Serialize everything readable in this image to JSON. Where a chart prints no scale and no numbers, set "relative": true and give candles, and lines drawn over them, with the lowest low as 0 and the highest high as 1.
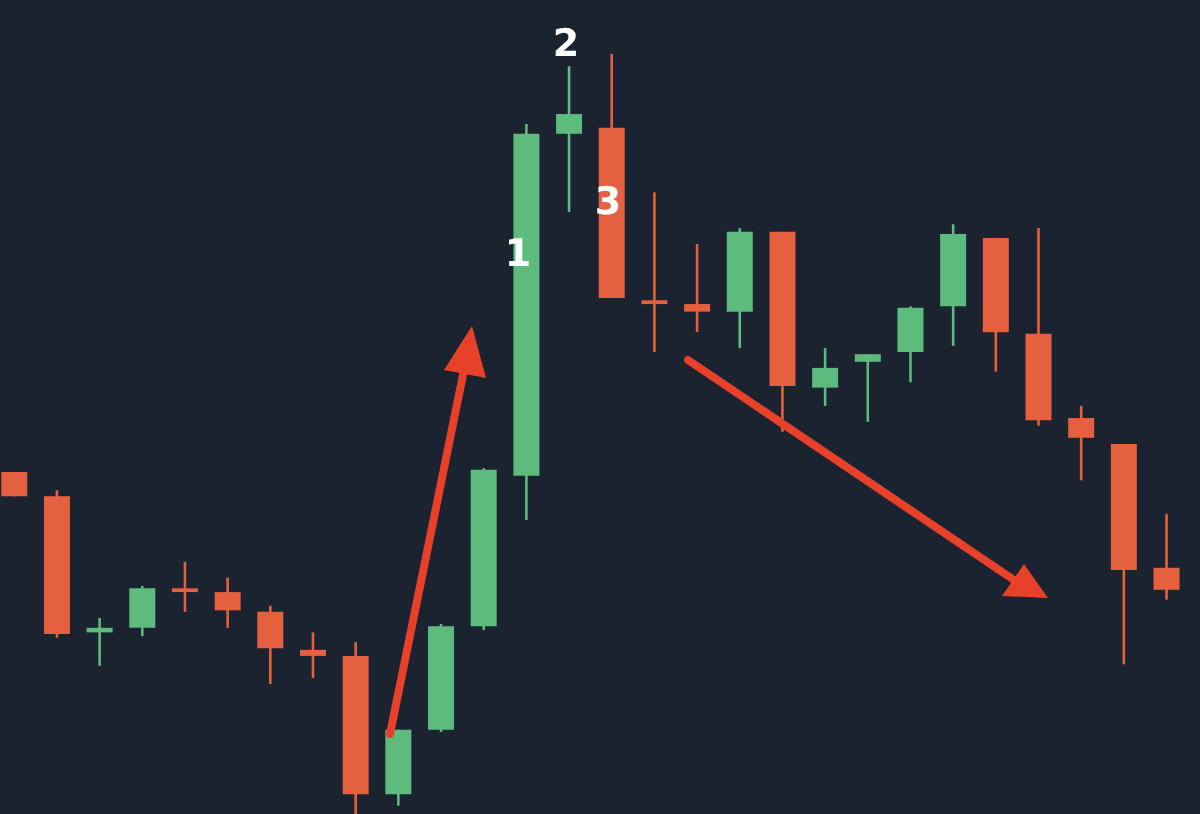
{
  "chart_data": {
    "type": "candlestick",
    "relative": true,
    "categories": [
      null,
      null,
      null,
      null,
      null,
      null,
      null,
      null,
      null,
      null,
      null,
      null,
      null,
      null,
      null,
      null,
      null,
      null,
      null,
      null,
      null,
      null,
      null,
      null,
      null,
      null,
      null,
      null
    ],
    "ohlc": [
      [
        0.45,
        0.45,
        0.418,
        0.418
      ],
      [
        0.418,
        0.426,
        0.232,
        0.237
      ],
      [
        0.239,
        0.258,
        0.195,
        0.245
      ],
      [
        0.245,
        0.3,
        0.234,
        0.297
      ],
      [
        0.297,
        0.332,
        0.266,
        0.292
      ],
      [
        0.292,
        0.311,
        0.245,
        0.268
      ],
      [
        0.266,
        0.274,
        0.171,
        0.218
      ],
      [
        0.216,
        0.239,
        0.179,
        0.208
      ],
      [
        0.208,
        0.226,
        0,
        0.026
      ],
      [
        0.026,
        0.111,
        0.011,
        0.111
      ],
      [
        0.111,
        0.25,
        0.108,
        0.247
      ],
      [
        0.247,
        0.455,
        0.242,
        0.453
      ],
      [
        0.445,
        0.908,
        0.387,
        0.895
      ],
      [
        0.895,
        0.984,
        0.792,
        0.921
      ],
      [
        0.903,
        1,
        0.679,
        0.679
      ],
      [
        0.676,
        0.818,
        0.608,
        0.671
      ],
      [
        0.671,
        0.75,
        0.634,
        0.661
      ],
      [
        0.661,
        0.771,
        0.613,
        0.766
      ],
      [
        0.766,
        0.766,
        0.503,
        0.563
      ],
      [
        0.561,
        0.613,
        0.537,
        0.587
      ],
      [
        0.595,
        0.605,
        0.516,
        0.605
      ],
      [
        0.608,
        0.668,
        0.568,
        0.666
      ],
      [
        0.668,
        0.776,
        0.616,
        0.763
      ],
      [
        0.758,
        0.758,
        0.582,
        0.634
      ],
      [
        0.632,
        0.771,
        0.511,
        0.518
      ],
      [
        0.521,
        0.537,
        0.439,
        0.495
      ],
      [
        0.487,
        0.487,
        0.197,
        0.321
      ],
      [
        0.324,
        0.395,
        0.282,
        0.295
      ]
    ],
    "colors": [
      "#e5603f",
      "#e5603f",
      "#5dbb7d",
      "#5dbb7d",
      "#e5603f",
      "#e5603f",
      "#e5603f",
      "#e5603f",
      "#e5603f",
      "#5dbb7d",
      "#5dbb7d",
      "#5dbb7d",
      "#5dbb7d",
      "#5dbb7d",
      "#e5603f",
      "#e5603f",
      "#e5603f",
      "#5dbb7d",
      "#e5603f",
      "#5dbb7d",
      "#5dbb7d",
      "#5dbb7d",
      "#5dbb7d",
      "#e5603f",
      "#e5603f",
      "#e5603f",
      "#e5603f",
      "#e5603f"
    ],
    "annotations": [
      "1",
      "2",
      "3"
    ]
  }
}
